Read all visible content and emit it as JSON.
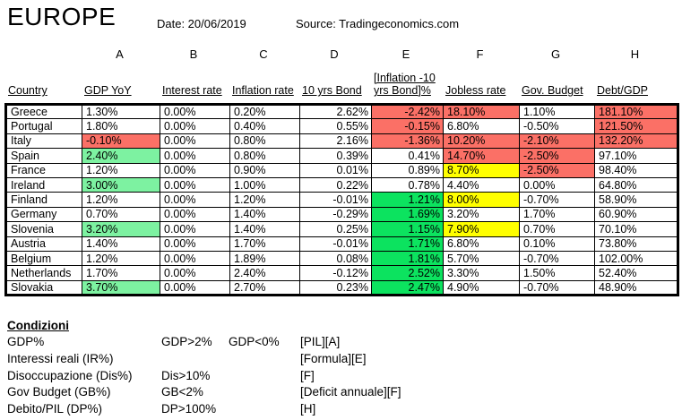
{
  "header": {
    "title": "EUROPE",
    "date": "Date: 20/06/2019",
    "source": "Source: Tradingeconomics.com"
  },
  "colors": {
    "red": "#fb7066",
    "light_green": "#7df2a1",
    "bright_green": "#0ce35f",
    "yellow": "#ffff00"
  },
  "table": {
    "col_letters": [
      "A",
      "B",
      "C",
      "D",
      "E",
      "F",
      "G",
      "H"
    ],
    "headers": {
      "country": "Country",
      "gdp": "GDP YoY",
      "interest": "Interest rate",
      "inflation": "Inflation rate",
      "bond": "10 yrs Bond",
      "spread_line1": "[Inflation -10",
      "spread_line2": "yrs Bond]%",
      "jobless": "Jobless rate",
      "gov_budget": "Gov. Budget",
      "debt_gdp": "Debt/GDP"
    },
    "rows": [
      {
        "country": "Greece",
        "cells": [
          {
            "v": "1.30%",
            "fill": null
          },
          {
            "v": "0.00%",
            "fill": null
          },
          {
            "v": "0.20%",
            "fill": null
          },
          {
            "v": "2.62%",
            "fill": null
          },
          {
            "v": "-2.42%",
            "fill": "red"
          },
          {
            "v": "18.10%",
            "fill": "red"
          },
          {
            "v": "1.10%",
            "fill": null
          },
          {
            "v": "181.10%",
            "fill": "red"
          }
        ]
      },
      {
        "country": "Portugal",
        "cells": [
          {
            "v": "1.80%",
            "fill": null
          },
          {
            "v": "0.00%",
            "fill": null
          },
          {
            "v": "0.40%",
            "fill": null
          },
          {
            "v": "0.55%",
            "fill": null
          },
          {
            "v": "-0.15%",
            "fill": "red"
          },
          {
            "v": "6.80%",
            "fill": null
          },
          {
            "v": "-0.50%",
            "fill": null
          },
          {
            "v": "121.50%",
            "fill": "red"
          }
        ]
      },
      {
        "country": "Italy",
        "cells": [
          {
            "v": "-0.10%",
            "fill": "red"
          },
          {
            "v": "0.00%",
            "fill": null
          },
          {
            "v": "0.80%",
            "fill": null
          },
          {
            "v": "2.16%",
            "fill": null
          },
          {
            "v": "-1.36%",
            "fill": "red"
          },
          {
            "v": "10.20%",
            "fill": "red"
          },
          {
            "v": "-2.10%",
            "fill": "red"
          },
          {
            "v": "132.20%",
            "fill": "red"
          }
        ]
      },
      {
        "country": "Spain",
        "cells": [
          {
            "v": "2.40%",
            "fill": "light_green"
          },
          {
            "v": "0.00%",
            "fill": null
          },
          {
            "v": "0.80%",
            "fill": null
          },
          {
            "v": "0.39%",
            "fill": null
          },
          {
            "v": "0.41%",
            "fill": null
          },
          {
            "v": "14.70%",
            "fill": "red"
          },
          {
            "v": "-2.50%",
            "fill": "red"
          },
          {
            "v": "97.10%",
            "fill": null
          }
        ]
      },
      {
        "country": "France",
        "cells": [
          {
            "v": "1.20%",
            "fill": null
          },
          {
            "v": "0.00%",
            "fill": null
          },
          {
            "v": "0.90%",
            "fill": null
          },
          {
            "v": "0.01%",
            "fill": null
          },
          {
            "v": "0.89%",
            "fill": null
          },
          {
            "v": "8.70%",
            "fill": "yellow"
          },
          {
            "v": "-2.50%",
            "fill": "red"
          },
          {
            "v": "98.40%",
            "fill": null
          }
        ]
      },
      {
        "country": "Ireland",
        "cells": [
          {
            "v": "3.00%",
            "fill": "light_green"
          },
          {
            "v": "0.00%",
            "fill": null
          },
          {
            "v": "1.00%",
            "fill": null
          },
          {
            "v": "0.22%",
            "fill": null
          },
          {
            "v": "0.78%",
            "fill": null
          },
          {
            "v": "4.40%",
            "fill": null
          },
          {
            "v": "0.00%",
            "fill": null
          },
          {
            "v": "64.80%",
            "fill": null
          }
        ]
      },
      {
        "country": "Finland",
        "cells": [
          {
            "v": "1.20%",
            "fill": null
          },
          {
            "v": "0.00%",
            "fill": null
          },
          {
            "v": "1.20%",
            "fill": null
          },
          {
            "v": "-0.01%",
            "fill": null
          },
          {
            "v": "1.21%",
            "fill": "bright_green"
          },
          {
            "v": "8.00%",
            "fill": "yellow"
          },
          {
            "v": "-0.70%",
            "fill": null
          },
          {
            "v": "58.90%",
            "fill": null
          }
        ]
      },
      {
        "country": "Germany",
        "cells": [
          {
            "v": "0.70%",
            "fill": null
          },
          {
            "v": "0.00%",
            "fill": null
          },
          {
            "v": "1.40%",
            "fill": null
          },
          {
            "v": "-0.29%",
            "fill": null
          },
          {
            "v": "1.69%",
            "fill": "bright_green"
          },
          {
            "v": "3.20%",
            "fill": null
          },
          {
            "v": "1.70%",
            "fill": null
          },
          {
            "v": "60.90%",
            "fill": null
          }
        ]
      },
      {
        "country": "Slovenia",
        "cells": [
          {
            "v": "3.20%",
            "fill": "light_green"
          },
          {
            "v": "0.00%",
            "fill": null
          },
          {
            "v": "1.40%",
            "fill": null
          },
          {
            "v": "0.25%",
            "fill": null
          },
          {
            "v": "1.15%",
            "fill": "bright_green"
          },
          {
            "v": "7.90%",
            "fill": "yellow"
          },
          {
            "v": "0.70%",
            "fill": null
          },
          {
            "v": "70.10%",
            "fill": null
          }
        ]
      },
      {
        "country": "Austria",
        "cells": [
          {
            "v": "1.40%",
            "fill": null
          },
          {
            "v": "0.00%",
            "fill": null
          },
          {
            "v": "1.70%",
            "fill": null
          },
          {
            "v": "-0.01%",
            "fill": null
          },
          {
            "v": "1.71%",
            "fill": "bright_green"
          },
          {
            "v": "6.80%",
            "fill": null
          },
          {
            "v": "0.10%",
            "fill": null
          },
          {
            "v": "73.80%",
            "fill": null
          }
        ]
      },
      {
        "country": "Belgium",
        "cells": [
          {
            "v": "1.20%",
            "fill": null
          },
          {
            "v": "0.00%",
            "fill": null
          },
          {
            "v": "1.89%",
            "fill": null
          },
          {
            "v": "0.08%",
            "fill": null
          },
          {
            "v": "1.81%",
            "fill": "bright_green"
          },
          {
            "v": "5.70%",
            "fill": null
          },
          {
            "v": "-0.70%",
            "fill": null
          },
          {
            "v": "102.00%",
            "fill": null
          }
        ]
      },
      {
        "country": "Netherlands",
        "cells": [
          {
            "v": "1.70%",
            "fill": null
          },
          {
            "v": "0.00%",
            "fill": null
          },
          {
            "v": "2.40%",
            "fill": null
          },
          {
            "v": "-0.12%",
            "fill": null
          },
          {
            "v": "2.52%",
            "fill": "bright_green"
          },
          {
            "v": "3.30%",
            "fill": null
          },
          {
            "v": "1.50%",
            "fill": null
          },
          {
            "v": "52.40%",
            "fill": null
          }
        ]
      },
      {
        "country": "Slovakia",
        "cells": [
          {
            "v": "3.70%",
            "fill": "light_green"
          },
          {
            "v": "0.00%",
            "fill": null
          },
          {
            "v": "2.70%",
            "fill": null
          },
          {
            "v": "0.23%",
            "fill": null
          },
          {
            "v": "2.47%",
            "fill": "bright_green"
          },
          {
            "v": "4.90%",
            "fill": null
          },
          {
            "v": "-0.70%",
            "fill": null
          },
          {
            "v": "48.90%",
            "fill": null
          }
        ]
      }
    ]
  },
  "conditions": {
    "title": "Condizioni",
    "items": [
      {
        "name": "GDP%",
        "rule1": "GDP>2%",
        "rule2": "GDP<0%",
        "ref": "[PIL][A]"
      },
      {
        "name": "Interessi reali (IR%)",
        "rule1": "",
        "rule2": "",
        "ref": "[Formula][E]"
      },
      {
        "name": "Disoccupazione (Dis%)",
        "rule1": "Dis>10%",
        "rule2": "",
        "ref": "[F]"
      },
      {
        "name": "Gov Budget (GB%)",
        "rule1": "GB<2%",
        "rule2": "",
        "ref": "[Deficit annuale][F]"
      },
      {
        "name": "Debito/PIL (DP%)",
        "rule1": "DP>100%",
        "rule2": "",
        "ref": "[H]"
      }
    ]
  }
}
